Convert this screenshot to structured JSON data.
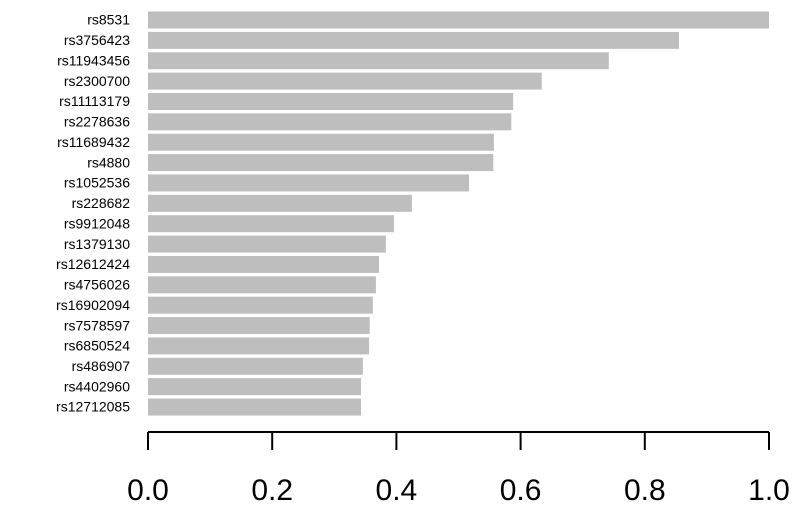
{
  "chart_data": {
    "type": "barh",
    "categories": [
      "rs8531",
      "rs3756423",
      "rs11943456",
      "rs2300700",
      "rs11113179",
      "rs2278636",
      "rs11689432",
      "rs4880",
      "rs1052536",
      "rs228682",
      "rs9912048",
      "rs1379130",
      "rs12612424",
      "rs4756026",
      "rs16902094",
      "rs7578597",
      "rs6850524",
      "rs486907",
      "rs4402960",
      "rs12712085"
    ],
    "values": [
      1.0,
      0.855,
      0.742,
      0.634,
      0.588,
      0.585,
      0.557,
      0.556,
      0.517,
      0.425,
      0.396,
      0.383,
      0.372,
      0.367,
      0.362,
      0.357,
      0.356,
      0.346,
      0.343,
      0.343
    ],
    "color": "#bebebe",
    "xlim": [
      0,
      1.0
    ],
    "xticks": [
      {
        "value": 0,
        "label": "0.0"
      },
      {
        "value": 0.2,
        "label": "0.2"
      },
      {
        "value": 0.4,
        "label": "0.4"
      },
      {
        "value": 0.6,
        "label": "0.6"
      },
      {
        "value": 0.8,
        "label": "0.8"
      },
      {
        "value": 1.0,
        "label": "1.0"
      }
    ]
  }
}
